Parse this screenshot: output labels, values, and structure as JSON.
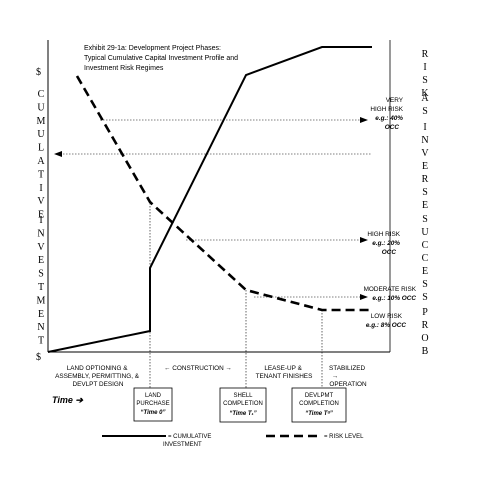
{
  "exhibit": {
    "title_lines": [
      "Exhibit 29-1a: Development Project Phases:",
      "Typical Cumulative Capital Investment Profile and",
      "Investment Risk Regimes"
    ]
  },
  "left_axis": {
    "top_symbol": "$",
    "bottom_symbol": "$",
    "label_word1": "CUMULATIVE",
    "label_word2": "INVESTMENT"
  },
  "right_axis": {
    "words": [
      "RISK",
      "AS",
      "INVERSE",
      "SUCCESS",
      "PROB"
    ]
  },
  "risk_levels": [
    {
      "title": "VERY",
      "title2": "HIGH RISK",
      "occ": "e.g.: 40%",
      "occ2": "OCC"
    },
    {
      "title": "HIGH RISK",
      "occ": "e.g.: 20%",
      "occ2": "OCC"
    },
    {
      "title": "MODERATE RISK",
      "occ": "e.g.: 10% OCC"
    },
    {
      "title": "LOW RISK",
      "occ": "e.g.: 8% OCC"
    }
  ],
  "phases": {
    "land_optioning": [
      "LAND OPTIONING &",
      "ASSEMBLY, PERMITTING, &",
      "DEVLPT DESIGN"
    ],
    "construction": "← CONSTRUCTION →",
    "lease_up": [
      "LEASE-UP &",
      "TENANT FINISHES"
    ],
    "stabilized": [
      "STABILIZED",
      "→",
      "OPERATION"
    ]
  },
  "time_label": "Time ➔",
  "milestones": [
    {
      "line1": "LAND",
      "line2": "PURCHASE",
      "time": "“Time 0”"
    },
    {
      "line1": "SHELL",
      "line2": "COMPLETION",
      "time": "“Time T₁”"
    },
    {
      "line1": "DEVLPMT",
      "line2": "COMPLETION",
      "time": "“Time Tᵃ”"
    }
  ],
  "legend": {
    "investment_label_1": "= CUMULATIVE",
    "investment_label_2": "INVESTMENT",
    "risk_label": "= RISK LEVEL"
  }
}
